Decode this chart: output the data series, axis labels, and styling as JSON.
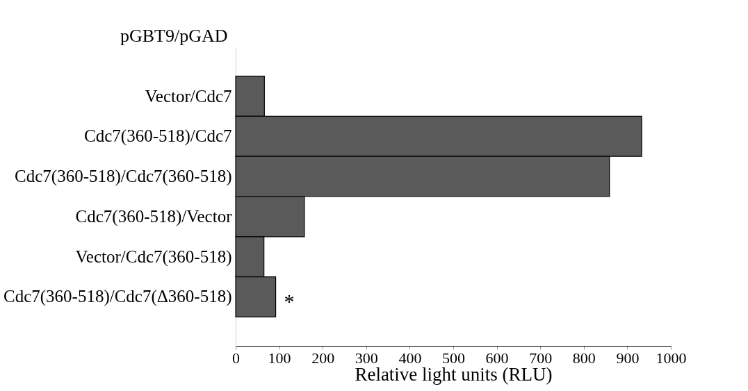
{
  "chart_data": {
    "type": "bar",
    "orientation": "horizontal",
    "ylabel": "pGBT9/pGAD",
    "xlabel": "Relative light units (RLU)",
    "categories": [
      "Vector/Cdc7",
      "Cdc7(360-518)/Cdc7",
      "Cdc7(360-518)/Cdc7(360-518)",
      "Cdc7(360-518)/Vector",
      "Vector/Cdc7(360-518)",
      "Cdc7(360-518)/Cdc7(Δ360-518)"
    ],
    "values": [
      66,
      933,
      859,
      158,
      65,
      92
    ],
    "color": "#5a5a5a",
    "xlim": [
      0,
      1000
    ],
    "xticks": [
      0,
      100,
      200,
      300,
      400,
      500,
      600,
      700,
      800,
      900,
      1000
    ],
    "grid": false,
    "annotations": [
      {
        "text": "*",
        "x": 92,
        "y": "Cdc7(360-518)/Cdc7(Δ360-518)"
      }
    ]
  }
}
